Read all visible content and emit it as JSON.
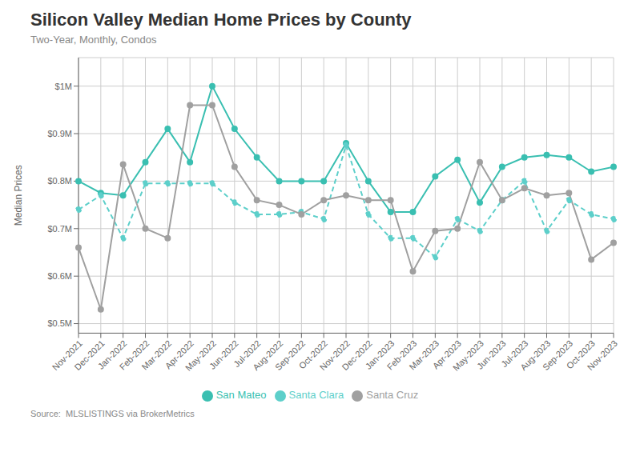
{
  "chart_data": {
    "type": "line",
    "title": "Silicon Valley Median Home Prices by County",
    "subtitle": "Two-Year, Monthly, Condos",
    "annotations": [
      "Source:  MLSLISTINGS via BrokerMetrics"
    ],
    "ylabel": "Median Prices",
    "categories": [
      "Nov-2021",
      "Dec-2021",
      "Jan-2022",
      "Feb-2022",
      "Mar-2022",
      "Apr-2022",
      "May-2022",
      "Jun-2022",
      "Jul-2022",
      "Aug-2022",
      "Sep-2022",
      "Oct-2022",
      "Nov-2022",
      "Dec-2022",
      "Jan-2023",
      "Feb-2023",
      "Mar-2023",
      "Apr-2023",
      "May-2023",
      "Jun-2023",
      "Jul-2023",
      "Aug-2023",
      "Sep-2023",
      "Oct-2023",
      "Nov-2023"
    ],
    "series": [
      {
        "name": "San Mateo",
        "color": "#3ABFB1",
        "line_style": "solid",
        "marker": "circle",
        "values": [
          0.8,
          0.775,
          0.77,
          0.84,
          0.91,
          0.84,
          1.0,
          0.91,
          0.85,
          0.8,
          0.8,
          0.8,
          0.88,
          0.8,
          0.735,
          0.735,
          0.81,
          0.845,
          0.755,
          0.83,
          0.85,
          0.855,
          0.85,
          0.82,
          0.83
        ]
      },
      {
        "name": "Santa Clara",
        "color": "#5DCFCA",
        "line_style": "dashed",
        "marker": "circle",
        "values": [
          0.74,
          0.77,
          0.68,
          0.795,
          0.795,
          0.795,
          0.795,
          0.755,
          0.73,
          0.73,
          0.735,
          0.72,
          0.875,
          0.73,
          0.68,
          0.68,
          0.64,
          0.72,
          0.695,
          0.76,
          0.8,
          0.695,
          0.76,
          0.73,
          0.72
        ]
      },
      {
        "name": "Santa Cruz",
        "color": "#A0A0A0",
        "line_style": "solid",
        "marker": "circle",
        "values": [
          0.66,
          0.53,
          0.835,
          0.7,
          0.68,
          0.96,
          0.96,
          0.83,
          0.76,
          0.75,
          0.73,
          0.76,
          0.77,
          0.76,
          0.76,
          0.61,
          0.695,
          0.7,
          0.84,
          0.76,
          0.785,
          0.77,
          0.775,
          0.635,
          0.67
        ]
      }
    ],
    "ylim": [
      0.48,
      1.06
    ],
    "yticks": [
      {
        "value": 0.5,
        "label": "$0.5M"
      },
      {
        "value": 0.6,
        "label": "$0.6M"
      },
      {
        "value": 0.7,
        "label": "$0.7M"
      },
      {
        "value": 0.8,
        "label": "$0.8M"
      },
      {
        "value": 0.9,
        "label": "$0.9M"
      },
      {
        "value": 1.0,
        "label": "$1M"
      }
    ],
    "grid": true,
    "legend": "bottom"
  }
}
